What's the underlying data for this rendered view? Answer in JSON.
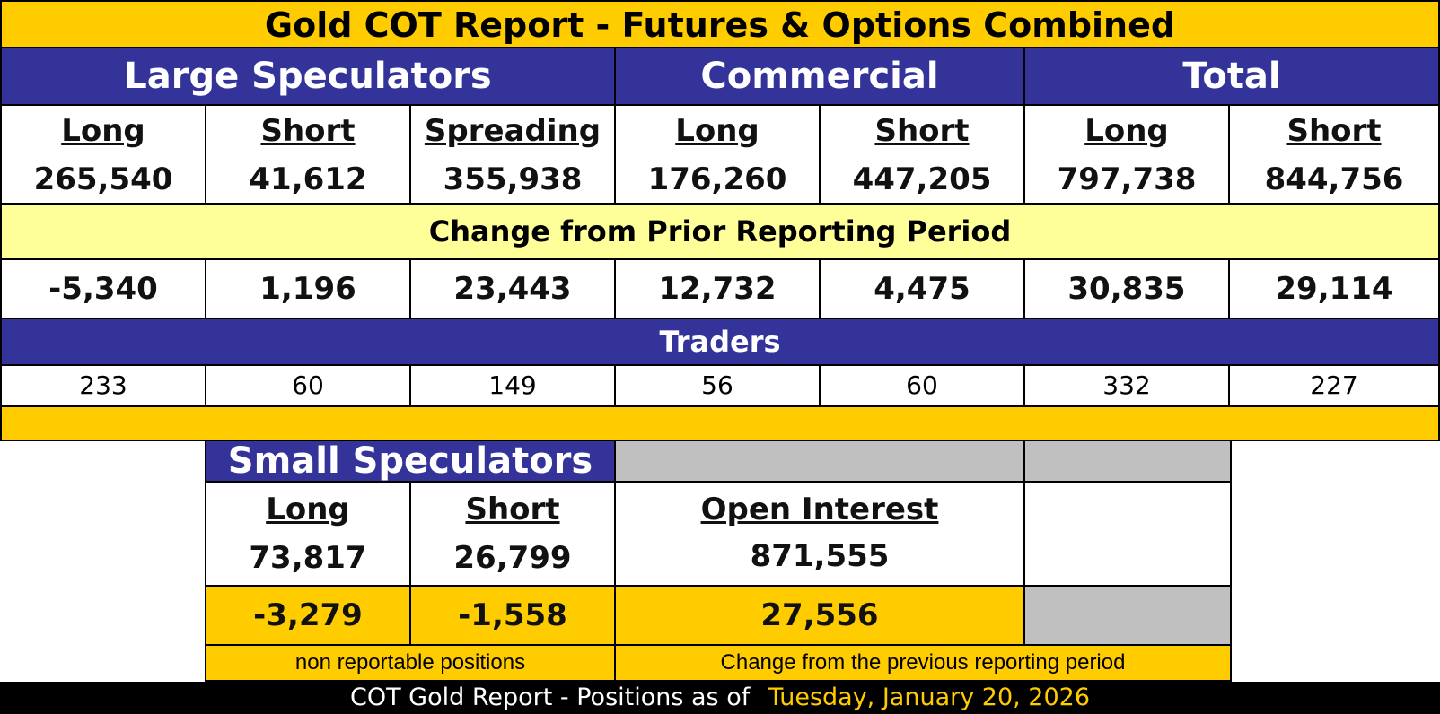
{
  "title": "Gold COT Report - Futures & Options Combined",
  "groups": {
    "large_speculators": "Large Speculators",
    "commercial": "Commercial",
    "total": "Total"
  },
  "columns": [
    {
      "label": "Long",
      "value": "265,540",
      "change": "-5,340",
      "traders": "233"
    },
    {
      "label": "Short",
      "value": "41,612",
      "change": "1,196",
      "traders": "60"
    },
    {
      "label": "Spreading",
      "value": "355,938",
      "change": "23,443",
      "traders": "149"
    },
    {
      "label": "Long",
      "value": "176,260",
      "change": "12,732",
      "traders": "56"
    },
    {
      "label": "Short",
      "value": "447,205",
      "change": "4,475",
      "traders": "60"
    },
    {
      "label": "Long",
      "value": "797,738",
      "change": "30,835",
      "traders": "332"
    },
    {
      "label": "Short",
      "value": "844,756",
      "change": "29,114",
      "traders": "227"
    }
  ],
  "change_banner": "Change from Prior Reporting Period",
  "traders_banner": "Traders",
  "small_speculators": {
    "title": "Small Speculators",
    "long_label": "Long",
    "long_value": "73,817",
    "long_change": "-3,279",
    "short_label": "Short",
    "short_value": "26,799",
    "short_change": "-1,558",
    "note": "non reportable positions"
  },
  "open_interest": {
    "label": "Open Interest",
    "value": "871,555",
    "change": "27,556",
    "note": "Change from the previous reporting period"
  },
  "footer": {
    "prefix": "COT Gold Report - Positions as of",
    "date": "Tuesday, January 20, 2026"
  },
  "colors": {
    "gold": "#FFCC00",
    "navy": "#333399",
    "light_yellow": "#FFFF99",
    "gray": "#C0C0C0",
    "black": "#000000",
    "date_text": "#FFCC00"
  }
}
